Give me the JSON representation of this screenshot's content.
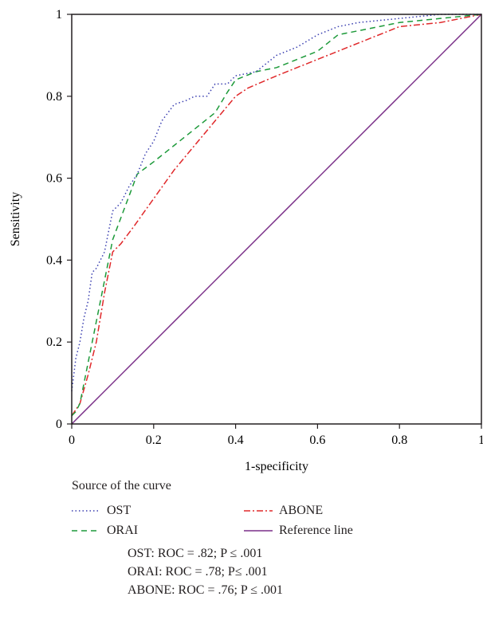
{
  "chart_data": {
    "type": "line",
    "xlabel": "1-specificity",
    "ylabel": "Sensitivity",
    "xlim": [
      0,
      1
    ],
    "ylim": [
      0,
      1
    ],
    "xticks": [
      "0",
      "0.2",
      "0.4",
      "0.6",
      "0.8",
      "1"
    ],
    "yticks": [
      "0",
      "0.2",
      "0.4",
      "0.6",
      "0.8",
      "1"
    ],
    "grid": false,
    "legend_title": "Source of the curve",
    "series": [
      {
        "name": "OST",
        "color": "#3a3fb0",
        "style": "dotted",
        "x": [
          0,
          0.005,
          0.01,
          0.02,
          0.03,
          0.04,
          0.05,
          0.06,
          0.08,
          0.1,
          0.12,
          0.14,
          0.16,
          0.18,
          0.2,
          0.22,
          0.25,
          0.28,
          0.3,
          0.33,
          0.35,
          0.38,
          0.4,
          0.45,
          0.5,
          0.55,
          0.6,
          0.65,
          0.7,
          0.8,
          0.9,
          1
        ],
        "y": [
          0.08,
          0.12,
          0.16,
          0.2,
          0.26,
          0.3,
          0.37,
          0.38,
          0.42,
          0.52,
          0.54,
          0.58,
          0.61,
          0.66,
          0.69,
          0.74,
          0.78,
          0.79,
          0.8,
          0.8,
          0.83,
          0.83,
          0.85,
          0.86,
          0.9,
          0.92,
          0.95,
          0.97,
          0.98,
          0.99,
          1,
          1
        ]
      },
      {
        "name": "ORAI",
        "color": "#1d9a3a",
        "style": "dashed",
        "x": [
          0,
          0.01,
          0.02,
          0.03,
          0.05,
          0.07,
          0.1,
          0.13,
          0.16,
          0.2,
          0.25,
          0.3,
          0.35,
          0.38,
          0.4,
          0.45,
          0.5,
          0.55,
          0.6,
          0.65,
          0.7,
          0.8,
          0.9,
          1
        ],
        "y": [
          0.02,
          0.03,
          0.05,
          0.1,
          0.2,
          0.3,
          0.45,
          0.53,
          0.61,
          0.64,
          0.68,
          0.72,
          0.76,
          0.81,
          0.84,
          0.86,
          0.87,
          0.89,
          0.91,
          0.95,
          0.96,
          0.98,
          0.99,
          1
        ]
      },
      {
        "name": "ABONE",
        "color": "#e0282a",
        "style": "dashdot",
        "x": [
          0,
          0.02,
          0.04,
          0.06,
          0.08,
          0.1,
          0.12,
          0.15,
          0.2,
          0.25,
          0.3,
          0.35,
          0.4,
          0.43,
          0.5,
          0.6,
          0.7,
          0.8,
          0.9,
          1
        ],
        "y": [
          0.02,
          0.05,
          0.12,
          0.2,
          0.32,
          0.42,
          0.44,
          0.48,
          0.55,
          0.62,
          0.68,
          0.74,
          0.8,
          0.82,
          0.85,
          0.89,
          0.93,
          0.97,
          0.98,
          1
        ]
      },
      {
        "name": "Reference line",
        "color": "#7a2f88",
        "style": "solid",
        "x": [
          0,
          1
        ],
        "y": [
          0,
          1
        ]
      }
    ]
  },
  "stats": [
    "OST: ROC =  .82; P ≤  .001",
    "ORAI: ROC =  .78; P≤  .001",
    "ABONE: ROC =  .76; P ≤  .001"
  ]
}
